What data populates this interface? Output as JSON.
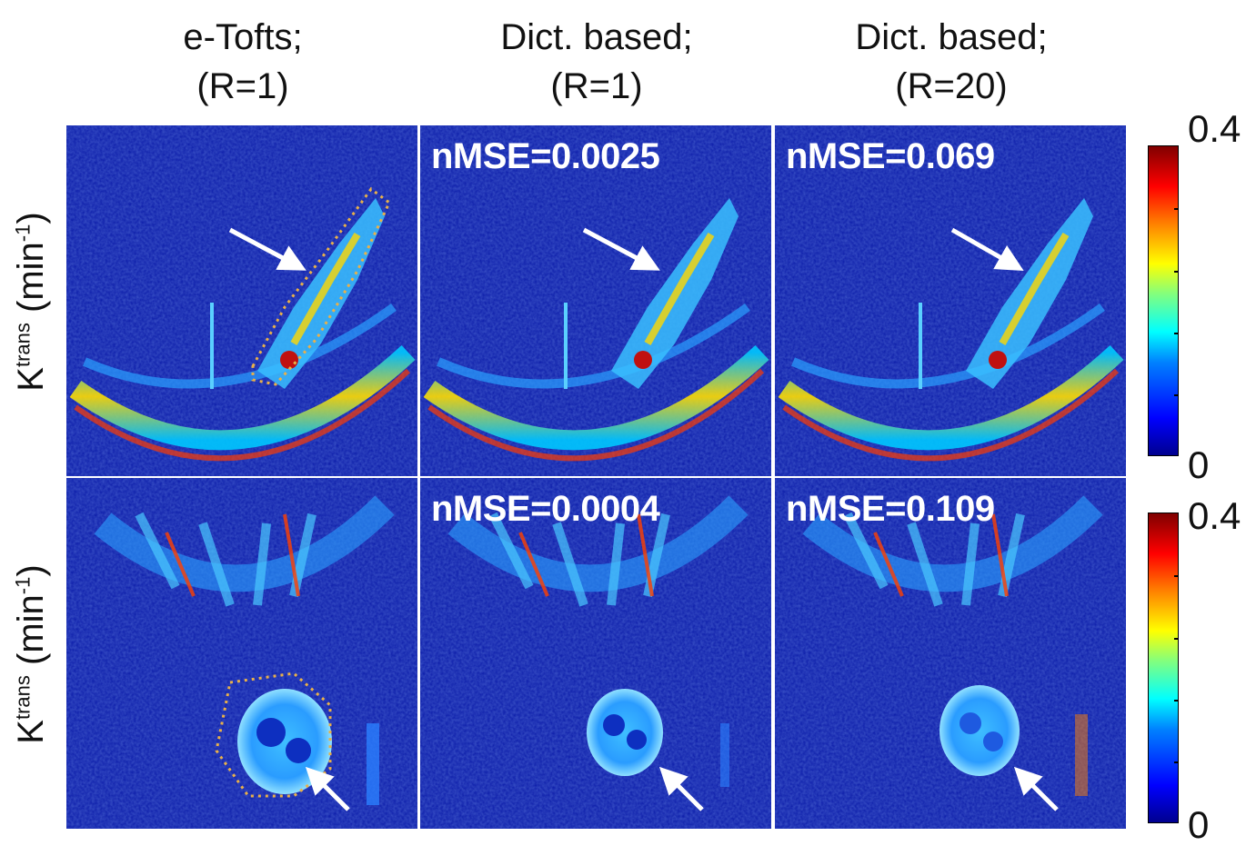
{
  "columns": [
    {
      "line1": "e-Tofts;",
      "line2": "(R=1)"
    },
    {
      "line1": "Dict. based;",
      "line2": "(R=1)"
    },
    {
      "line1": "Dict. based;",
      "line2": "(R=20)"
    }
  ],
  "row_label": {
    "symbol": "K",
    "superscript": "trans",
    "unit": "(min",
    "unit_exp": "-1",
    "close": ")"
  },
  "nmse": {
    "row1": {
      "col2": "nMSE=0.0025",
      "col3": "nMSE=0.069"
    },
    "row2": {
      "col2": "nMSE=0.0004",
      "col3": "nMSE=0.109"
    }
  },
  "colorbar": {
    "max_label": "0.4",
    "min_label": "0",
    "colormap": "jet"
  },
  "colors": {
    "background_map": "#0a1aa8",
    "arrow": "#ffffff",
    "roi_outline": "#e8b04a"
  }
}
